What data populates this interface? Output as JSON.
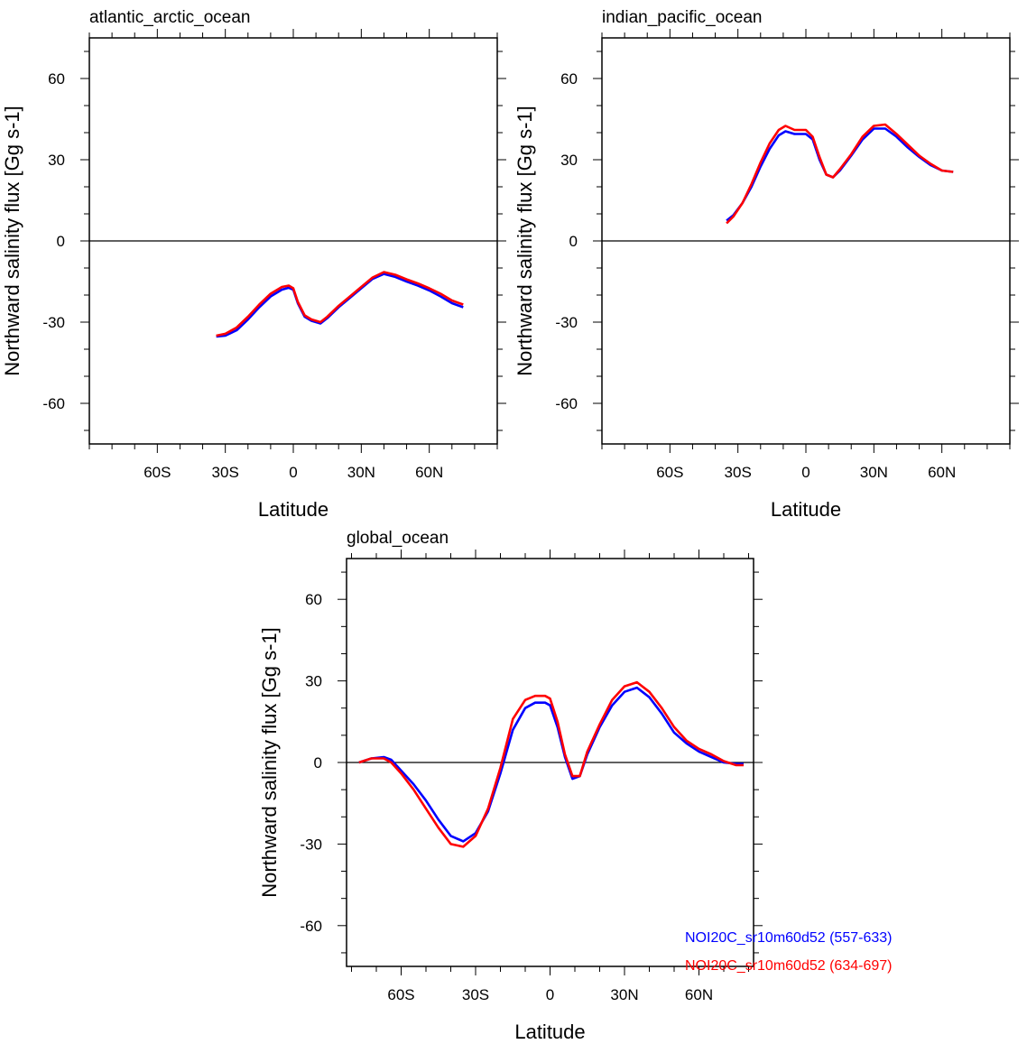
{
  "chart_data": [
    {
      "type": "line",
      "title": "atlantic_arctic_ocean",
      "xlabel": "Latitude",
      "ylabel": "Northward salinity flux [Gg s-1]",
      "xlim": [
        -90,
        90
      ],
      "ylim": [
        -75,
        75
      ],
      "xticks": [
        {
          "v": -60,
          "l": "60S"
        },
        {
          "v": -30,
          "l": "30S"
        },
        {
          "v": 0,
          "l": "0"
        },
        {
          "v": 30,
          "l": "30N"
        },
        {
          "v": 60,
          "l": "60N"
        }
      ],
      "yticks": [
        {
          "v": 60,
          "l": "60"
        },
        {
          "v": 30,
          "l": "30"
        },
        {
          "v": 0,
          "l": "0"
        },
        {
          "v": -30,
          "l": "-30"
        },
        {
          "v": -60,
          "l": "-60"
        }
      ],
      "zero_line": true,
      "series": [
        {
          "color": "#0000ff",
          "x": [
            -34,
            -30,
            -25,
            -20,
            -15,
            -10,
            -5,
            -2,
            0,
            2,
            5,
            8,
            12,
            15,
            20,
            25,
            30,
            35,
            40,
            45,
            50,
            55,
            60,
            65,
            70,
            75
          ],
          "y": [
            -35.3,
            -35,
            -33,
            -29,
            -24.5,
            -20.5,
            -18,
            -17.3,
            -18,
            -23,
            -28,
            -29.5,
            -30.5,
            -28.5,
            -24.5,
            -21,
            -17.5,
            -14,
            -12.2,
            -13.3,
            -15,
            -16.5,
            -18.3,
            -20.5,
            -23,
            -24.5
          ]
        },
        {
          "color": "#ff0000",
          "x": [
            -34,
            -30,
            -25,
            -20,
            -15,
            -10,
            -5,
            -2,
            0,
            2,
            5,
            8,
            12,
            15,
            20,
            25,
            30,
            35,
            40,
            45,
            50,
            55,
            60,
            65,
            70,
            75
          ],
          "y": [
            -35,
            -34.3,
            -32,
            -28,
            -23.5,
            -19.5,
            -17,
            -16.5,
            -17.5,
            -22.5,
            -27.5,
            -29,
            -30,
            -28,
            -24,
            -20.5,
            -17,
            -13.5,
            -11.5,
            -12.5,
            -14.2,
            -15.7,
            -17.5,
            -19.5,
            -22,
            -23.5
          ]
        }
      ]
    },
    {
      "type": "line",
      "title": "indian_pacific_ocean",
      "xlabel": "Latitude",
      "ylabel": "Northward salinity flux [Gg s-1]",
      "xlim": [
        -90,
        90
      ],
      "ylim": [
        -75,
        75
      ],
      "xticks": [
        {
          "v": -60,
          "l": "60S"
        },
        {
          "v": -30,
          "l": "30S"
        },
        {
          "v": 0,
          "l": "0"
        },
        {
          "v": 30,
          "l": "30N"
        },
        {
          "v": 60,
          "l": "60N"
        }
      ],
      "yticks": [
        {
          "v": 60,
          "l": "60"
        },
        {
          "v": 30,
          "l": "30"
        },
        {
          "v": 0,
          "l": "0"
        },
        {
          "v": -30,
          "l": "-30"
        },
        {
          "v": -60,
          "l": "-60"
        }
      ],
      "zero_line": true,
      "series": [
        {
          "color": "#0000ff",
          "x": [
            -35,
            -32,
            -28,
            -24,
            -20,
            -16,
            -12,
            -9,
            -5,
            0,
            3,
            6,
            9,
            12,
            15,
            20,
            25,
            30,
            35,
            40,
            45,
            50,
            55,
            60,
            65
          ],
          "y": [
            7.5,
            9.5,
            14,
            20,
            27.5,
            34,
            39,
            40.5,
            39.5,
            39.5,
            37.5,
            30,
            24.5,
            23.5,
            26,
            31.5,
            37.5,
            41.5,
            41.5,
            38.5,
            34.5,
            31,
            28,
            26,
            25.5
          ]
        },
        {
          "color": "#ff0000",
          "x": [
            -35,
            -32,
            -28,
            -24,
            -20,
            -16,
            -12,
            -9,
            -5,
            0,
            3,
            6,
            9,
            12,
            15,
            20,
            25,
            30,
            35,
            40,
            45,
            50,
            55,
            60,
            65
          ],
          "y": [
            6.5,
            9,
            14,
            21,
            29,
            36,
            41,
            42.5,
            41,
            41,
            38.5,
            31,
            24.5,
            23.5,
            26.5,
            32,
            38.5,
            42.5,
            43,
            39.5,
            35.5,
            31.5,
            28.5,
            26,
            25.5
          ]
        }
      ]
    },
    {
      "type": "line",
      "title": "global_ocean",
      "xlabel": "Latitude",
      "ylabel": "Northward salinity flux [Gg s-1]",
      "xlim": [
        -82,
        82
      ],
      "ylim": [
        -75,
        75
      ],
      "xticks": [
        {
          "v": -60,
          "l": "60S"
        },
        {
          "v": -30,
          "l": "30S"
        },
        {
          "v": 0,
          "l": "0"
        },
        {
          "v": 30,
          "l": "30N"
        },
        {
          "v": 60,
          "l": "60N"
        }
      ],
      "yticks": [
        {
          "v": 60,
          "l": "60"
        },
        {
          "v": 30,
          "l": "30"
        },
        {
          "v": 0,
          "l": "0"
        },
        {
          "v": -30,
          "l": "-30"
        },
        {
          "v": -60,
          "l": "-60"
        }
      ],
      "zero_line": true,
      "series": [
        {
          "name": "NOI20C_sr10m60d52 (557-633)",
          "color": "#0000ff",
          "x": [
            -77,
            -72,
            -67,
            -64,
            -60,
            -55,
            -50,
            -45,
            -40,
            -35,
            -30,
            -25,
            -20,
            -15,
            -10,
            -6,
            -2,
            0,
            3,
            6,
            9,
            12,
            15,
            20,
            25,
            30,
            35,
            40,
            45,
            50,
            55,
            60,
            65,
            70,
            75,
            78
          ],
          "y": [
            0,
            1.5,
            2,
            1,
            -3,
            -8,
            -14,
            -21,
            -27,
            -29,
            -26,
            -18,
            -4,
            12,
            20,
            22,
            22,
            21,
            13,
            2,
            -6,
            -5,
            3,
            13,
            21,
            26,
            27.5,
            24,
            18,
            11,
            7,
            4,
            2,
            0,
            -0.5,
            -0.5
          ]
        },
        {
          "name": "NOI20C_sr10m60d52 (634-697)",
          "color": "#ff0000",
          "x": [
            -77,
            -72,
            -67,
            -64,
            -60,
            -55,
            -50,
            -45,
            -40,
            -35,
            -30,
            -25,
            -20,
            -15,
            -10,
            -6,
            -2,
            0,
            3,
            6,
            9,
            12,
            15,
            20,
            25,
            30,
            35,
            40,
            45,
            50,
            55,
            60,
            65,
            70,
            75,
            78
          ],
          "y": [
            0,
            1.5,
            1.5,
            0,
            -4,
            -10,
            -17,
            -24,
            -30,
            -31,
            -27,
            -17,
            -2,
            16,
            23,
            24.5,
            24.5,
            23.5,
            15,
            3,
            -5,
            -5,
            4,
            14,
            23,
            28,
            29.5,
            26,
            20,
            13,
            8,
            5,
            3,
            0.5,
            -1,
            -1
          ]
        }
      ],
      "legend": "bottom-right"
    }
  ]
}
